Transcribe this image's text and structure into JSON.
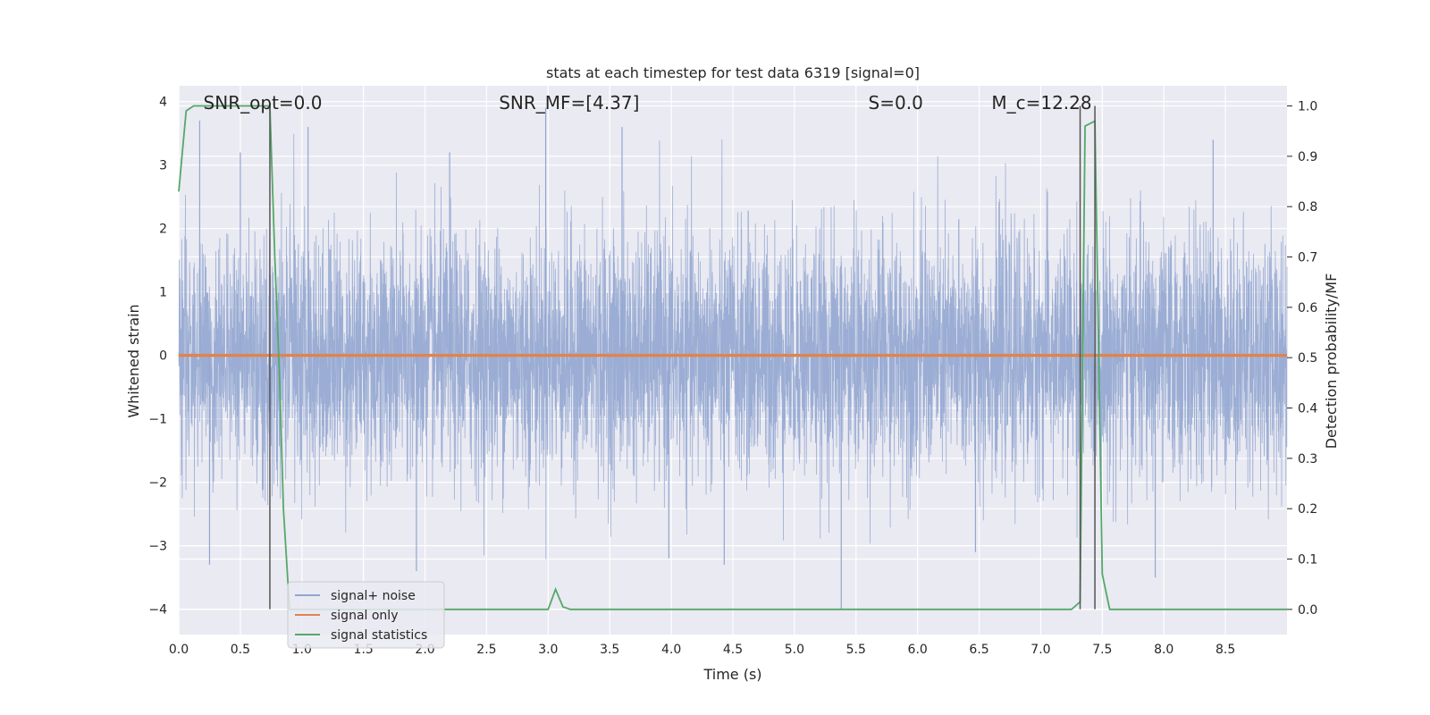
{
  "chart_data": {
    "type": "line",
    "title": "stats at each timestep for test data 6319 [signal=0]",
    "xlabel": "Time (s)",
    "ylabel": "Whitened strain",
    "y2label": "Detection probability/MF",
    "xlim": [
      0.0,
      9.0
    ],
    "ylim": [
      -4.4,
      4.25
    ],
    "y2lim": [
      -0.05,
      1.04
    ],
    "x_ticks": [
      "0.0",
      "0.5",
      "1.0",
      "1.5",
      "2.0",
      "2.5",
      "3.0",
      "3.5",
      "4.0",
      "4.5",
      "5.0",
      "5.5",
      "6.0",
      "6.5",
      "7.0",
      "7.5",
      "8.0",
      "8.5"
    ],
    "y_ticks": [
      "−4",
      "−3",
      "−2",
      "−1",
      "0",
      "1",
      "2",
      "3",
      "4"
    ],
    "y2_ticks": [
      "0.0",
      "0.1",
      "0.2",
      "0.3",
      "0.4",
      "0.5",
      "0.6",
      "0.7",
      "0.8",
      "0.9",
      "1.0"
    ],
    "grid": true,
    "legend_position": "lower-left",
    "annotations": [
      {
        "label": "SNR_opt=0.0",
        "x": 0.2
      },
      {
        "label": "SNR_MF=[4.37]",
        "x": 2.6
      },
      {
        "label": "S=0.0",
        "x": 5.6
      },
      {
        "label": "M_c=12.28",
        "x": 6.6
      }
    ],
    "vlines_x": [
      0.74,
      7.32,
      7.44
    ],
    "series": [
      {
        "name": "signal+ noise",
        "axis": "left",
        "color": "#92a6d0",
        "style": "dense-noise",
        "sigma": 0.95,
        "x_range": [
          0.0,
          9.0
        ],
        "spikes": [
          {
            "x": 0.17,
            "y": 3.7
          },
          {
            "x": 0.25,
            "y": -3.3
          },
          {
            "x": 0.5,
            "y": 3.2
          },
          {
            "x": 1.05,
            "y": 3.6
          },
          {
            "x": 1.93,
            "y": -3.4
          },
          {
            "x": 2.2,
            "y": 3.2
          },
          {
            "x": 2.98,
            "y": 3.9
          },
          {
            "x": 3.6,
            "y": 3.6
          },
          {
            "x": 3.98,
            "y": -3.2
          },
          {
            "x": 4.43,
            "y": -3.3
          },
          {
            "x": 5.38,
            "y": -4.0
          },
          {
            "x": 6.47,
            "y": -3.1
          },
          {
            "x": 7.93,
            "y": -3.5
          },
          {
            "x": 8.4,
            "y": 3.4
          }
        ]
      },
      {
        "name": "signal only",
        "axis": "left",
        "color": "#dd8452",
        "x": [
          0.0,
          9.0
        ],
        "y": [
          0.0,
          0.0
        ]
      },
      {
        "name": "signal statistics",
        "axis": "right",
        "color": "#55a868",
        "x": [
          0.0,
          0.06,
          0.12,
          0.5,
          0.6,
          0.67,
          0.74,
          0.78,
          0.82,
          0.85,
          0.9,
          3.0,
          3.06,
          3.12,
          3.18,
          7.25,
          7.32,
          7.36,
          7.44,
          7.5,
          7.56,
          9.0
        ],
        "y": [
          0.83,
          0.99,
          1.0,
          1.0,
          1.0,
          1.0,
          1.0,
          0.7,
          0.45,
          0.2,
          0.0,
          0.0,
          0.04,
          0.005,
          0.0,
          0.0,
          0.015,
          0.96,
          0.97,
          0.07,
          0.0,
          0.0
        ]
      }
    ]
  }
}
